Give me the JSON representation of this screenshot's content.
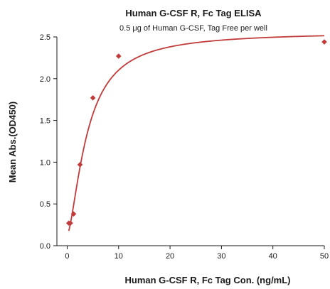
{
  "chart_data": {
    "type": "scatter",
    "title": "Human G-CSF R, Fc Tag ELISA",
    "subtitle": "0.5 μg of Human G-CSF, Tag Free per well",
    "xlabel": "Human G-CSF R, Fc Tag Con. (ng/mL)",
    "ylabel": "Mean Abs.(OD450)",
    "xlim": [
      -2,
      50
    ],
    "ylim": [
      0,
      2.5
    ],
    "xticks": [
      "0",
      "10",
      "20",
      "30",
      "40",
      "50"
    ],
    "yticks": [
      "0.0",
      "0.5",
      "1.0",
      "1.5",
      "2.0",
      "2.5"
    ],
    "grid": false,
    "series": [
      {
        "x": [
          0.3125,
          0.625,
          1.25,
          2.5,
          5,
          10,
          50
        ],
        "y": [
          0.27,
          0.27,
          0.38,
          0.97,
          1.77,
          2.27,
          2.44
        ],
        "color": "#c23b3b",
        "marker": "diamond",
        "fit": "4PL"
      }
    ]
  }
}
